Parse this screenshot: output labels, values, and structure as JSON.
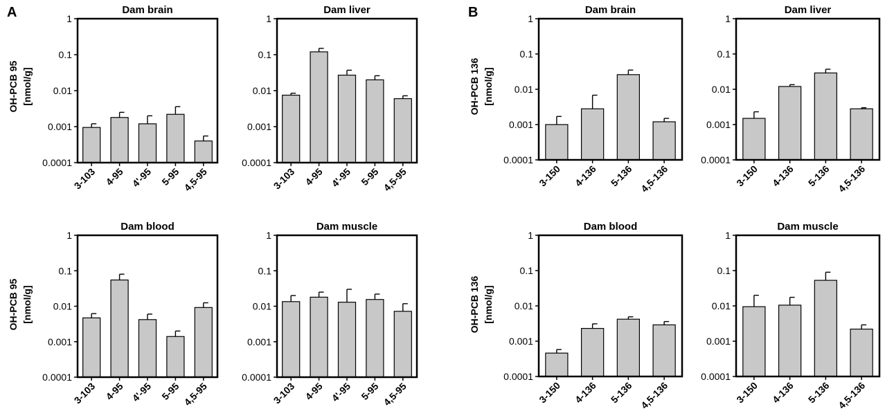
{
  "panels": [
    {
      "letter": "A",
      "ylabel_line1": "OH-PCB 95",
      "ylabel_line2": "[nmol/g]"
    },
    {
      "letter": "B",
      "ylabel_line1": "OH-PCB 136",
      "ylabel_line2": "[nmol/g]"
    }
  ],
  "chart_data": [
    {
      "type": "bar",
      "panel": "A",
      "title": "Dam brain",
      "yscale": "log",
      "ylim": [
        0.0001,
        1
      ],
      "yticks": [
        "1",
        "0.1",
        "0.01",
        "0.001",
        "0.0001"
      ],
      "categories": [
        "3-103",
        "4-95",
        "4'-95",
        "5-95",
        "4,5-95"
      ],
      "values": [
        0.00095,
        0.0018,
        0.0012,
        0.0022,
        0.0004
      ],
      "error_upper": [
        0.0012,
        0.0025,
        0.002,
        0.0036,
        0.00055
      ]
    },
    {
      "type": "bar",
      "panel": "A",
      "title": "Dam liver",
      "yscale": "log",
      "ylim": [
        0.0001,
        1
      ],
      "yticks": [
        "1",
        "0.1",
        "0.01",
        "0.001",
        "0.0001"
      ],
      "categories": [
        "3-103",
        "4-95",
        "4'-95",
        "5-95",
        "4,5-95"
      ],
      "values": [
        0.0075,
        0.12,
        0.027,
        0.02,
        0.006
      ],
      "error_upper": [
        0.0085,
        0.15,
        0.037,
        0.026,
        0.0072
      ]
    },
    {
      "type": "bar",
      "panel": "B",
      "title": "Dam brain",
      "yscale": "log",
      "ylim": [
        0.0001,
        1
      ],
      "yticks": [
        "1",
        "0.1",
        "0.01",
        "0.001",
        "0.0001"
      ],
      "categories": [
        "3-150",
        "4-136",
        "5-136",
        "4,5-136"
      ],
      "values": [
        0.001,
        0.0028,
        0.026,
        0.0012
      ],
      "error_upper": [
        0.0017,
        0.0068,
        0.035,
        0.0015
      ]
    },
    {
      "type": "bar",
      "panel": "B",
      "title": "Dam liver",
      "yscale": "log",
      "ylim": [
        0.0001,
        1
      ],
      "yticks": [
        "1",
        "0.1",
        "0.01",
        "0.001",
        "0.0001"
      ],
      "categories": [
        "3-150",
        "4-136",
        "5-136",
        "4,5-136"
      ],
      "values": [
        0.0015,
        0.012,
        0.029,
        0.0028
      ],
      "error_upper": [
        0.0023,
        0.0135,
        0.037,
        0.003
      ]
    },
    {
      "type": "bar",
      "panel": "A",
      "title": "Dam blood",
      "yscale": "log",
      "ylim": [
        0.0001,
        1
      ],
      "yticks": [
        "1",
        "0.1",
        "0.01",
        "0.001",
        "0.0001"
      ],
      "categories": [
        "3-103",
        "4-95",
        "4'-95",
        "5-95",
        "4,5-95"
      ],
      "values": [
        0.0047,
        0.055,
        0.0042,
        0.0014,
        0.0092
      ],
      "error_upper": [
        0.0062,
        0.08,
        0.006,
        0.002,
        0.0125
      ]
    },
    {
      "type": "bar",
      "panel": "A",
      "title": "Dam muscle",
      "yscale": "log",
      "ylim": [
        0.0001,
        1
      ],
      "yticks": [
        "1",
        "0.1",
        "0.01",
        "0.001",
        "0.0001"
      ],
      "categories": [
        "3-103",
        "4-95",
        "4'-95",
        "5-95",
        "4,5-95"
      ],
      "values": [
        0.0135,
        0.018,
        0.013,
        0.0155,
        0.0072
      ],
      "error_upper": [
        0.02,
        0.025,
        0.03,
        0.022,
        0.0118
      ]
    },
    {
      "type": "bar",
      "panel": "B",
      "title": "Dam blood",
      "yscale": "log",
      "ylim": [
        0.0001,
        1
      ],
      "yticks": [
        "1",
        "0.1",
        "0.01",
        "0.001",
        "0.0001"
      ],
      "categories": [
        "3-150",
        "4-136",
        "5-136",
        "4,5-136"
      ],
      "values": [
        0.00046,
        0.0023,
        0.0042,
        0.0029
      ],
      "error_upper": [
        0.00058,
        0.0031,
        0.0049,
        0.0036
      ]
    },
    {
      "type": "bar",
      "panel": "B",
      "title": "Dam muscle",
      "yscale": "log",
      "ylim": [
        0.0001,
        1
      ],
      "yticks": [
        "1",
        "0.1",
        "0.01",
        "0.001",
        "0.0001"
      ],
      "categories": [
        "3-150",
        "4-136",
        "5-136",
        "4,5-136"
      ],
      "values": [
        0.0095,
        0.0105,
        0.053,
        0.0022
      ],
      "error_upper": [
        0.02,
        0.0175,
        0.09,
        0.0029
      ]
    }
  ],
  "colors": {
    "bar_fill": "#c8c8c8",
    "bar_stroke": "#000000",
    "axis": "#000000"
  }
}
